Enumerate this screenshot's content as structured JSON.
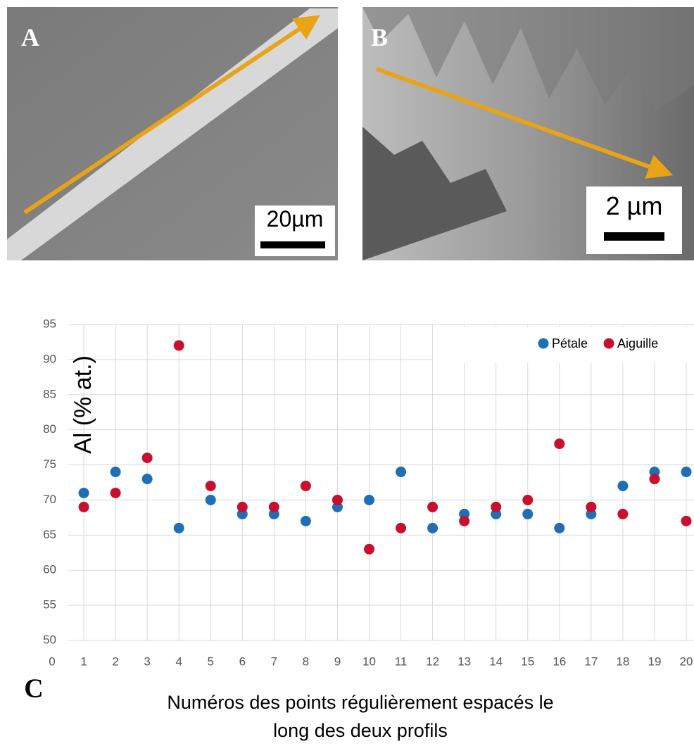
{
  "panels": [
    {
      "label": "A",
      "scale_bar": "20µm"
    },
    {
      "label": "B",
      "scale_bar": "2 µm"
    }
  ],
  "chart_data": {
    "type": "scatter",
    "panel_label": "C",
    "ylabel": "Al (% at.)",
    "xlabel": [
      "Numéros des points régulièrement espacés le",
      "long des deux profils"
    ],
    "x": [
      1,
      2,
      3,
      4,
      5,
      6,
      7,
      8,
      9,
      10,
      11,
      12,
      13,
      14,
      15,
      16,
      17,
      18,
      19,
      20
    ],
    "series": [
      {
        "name": "Pétale",
        "color": "#1f6fb5",
        "values": [
          71,
          74,
          73,
          66,
          70,
          68,
          68,
          67,
          69,
          70,
          74,
          66,
          68,
          68,
          68,
          66,
          68,
          72,
          74,
          74
        ]
      },
      {
        "name": "Aiguille",
        "color": "#c8102e",
        "values": [
          69,
          71,
          76,
          92,
          72,
          69,
          69,
          72,
          70,
          63,
          66,
          69,
          67,
          69,
          70,
          78,
          69,
          68,
          73,
          67
        ]
      }
    ],
    "xlim": [
      0,
      20
    ],
    "xticks": [
      0,
      1,
      2,
      3,
      4,
      5,
      6,
      7,
      8,
      9,
      10,
      11,
      12,
      13,
      14,
      15,
      16,
      17,
      18,
      19,
      20
    ],
    "ylim": [
      50,
      95
    ],
    "yticks": [
      50,
      55,
      60,
      65,
      70,
      75,
      80,
      85,
      90,
      95
    ],
    "grid": true,
    "legend": "top-right"
  }
}
